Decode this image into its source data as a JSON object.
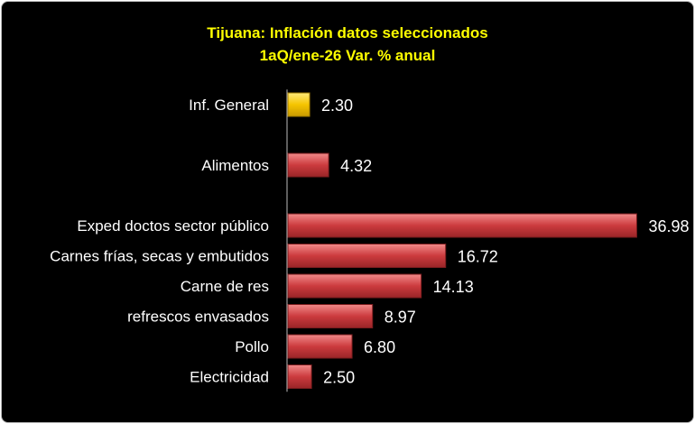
{
  "chart_data": {
    "type": "bar",
    "orientation": "horizontal",
    "title": "Tijuana: Inflación datos seleccionados",
    "subtitle": "1aQ/ene-26 Var. % anual",
    "categories": [
      "Inf. General",
      "",
      "Alimentos",
      "",
      "Exped doctos sector público",
      "Carnes frías, secas y embutidos",
      "Carne de res",
      "refrescos envasados",
      "Pollo",
      "Electricidad"
    ],
    "values": [
      2.3,
      null,
      4.32,
      null,
      36.98,
      16.72,
      14.13,
      8.97,
      6.8,
      2.5
    ],
    "data_labels": [
      "2.30",
      "",
      "4.32",
      "",
      "36.98",
      "16.72",
      "14.13",
      "8.97",
      "6.80",
      "2.50"
    ],
    "highlight_category": "Inf. General",
    "colors": {
      "highlight": "#f5c400",
      "default": "#c9373a",
      "background": "#000000",
      "title": "#ffff00",
      "text": "#ffffff"
    },
    "grid": false
  }
}
